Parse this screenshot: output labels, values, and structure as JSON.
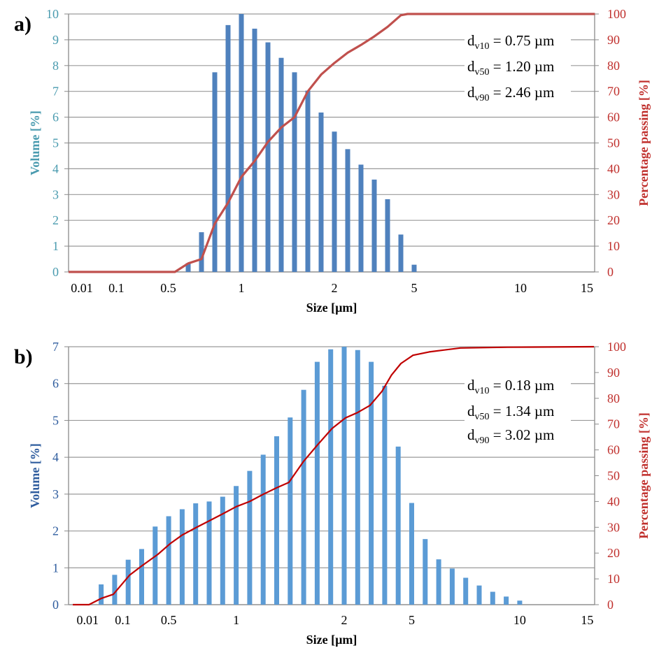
{
  "chart_data": [
    {
      "type": "bar+line",
      "panel_label": "a)",
      "xlabel": "Size [µm]",
      "ylabel": "Volume [%]",
      "y2label": "Percentage passing [%]",
      "ylim": [
        0,
        10
      ],
      "y2lim": [
        0,
        100
      ],
      "yticks": [
        0,
        1,
        2,
        3,
        4,
        5,
        6,
        7,
        8,
        9,
        10
      ],
      "y2ticks": [
        0,
        10,
        20,
        30,
        40,
        50,
        60,
        70,
        80,
        90,
        100
      ],
      "grid": true,
      "x_category_range": [
        0,
        39.6
      ],
      "x_ticks": [
        {
          "label": "0.01",
          "pos": 1
        },
        {
          "label": "0.1",
          "pos": 3.6
        },
        {
          "label": "0.5",
          "pos": 7.5
        },
        {
          "label": "1",
          "pos": 13
        },
        {
          "label": "2",
          "pos": 20
        },
        {
          "label": "5",
          "pos": 26
        },
        {
          "label": "10",
          "pos": 34
        },
        {
          "label": "15",
          "pos": 39
        }
      ],
      "bars": {
        "positions": [
          9,
          10,
          11,
          12,
          13,
          14,
          15,
          16,
          17,
          18,
          19,
          20,
          21,
          22,
          23,
          24,
          25,
          26
        ],
        "values": [
          0.34,
          1.54,
          7.74,
          9.57,
          10.0,
          9.43,
          8.9,
          8.3,
          7.74,
          7.03,
          6.18,
          5.44,
          4.76,
          4.16,
          3.58,
          2.82,
          1.45,
          0.28
        ]
      },
      "cumulative": {
        "positions": [
          0,
          8,
          9,
          10,
          11,
          12,
          13,
          14,
          15,
          16,
          17,
          18,
          19,
          20,
          21,
          22,
          23,
          24,
          25,
          25.5,
          39.6
        ],
        "values": [
          0,
          0,
          3.3,
          5,
          18.7,
          26.8,
          36.8,
          43,
          50.4,
          56,
          60,
          70,
          76.5,
          81,
          85,
          88,
          91.3,
          95,
          99.5,
          100,
          100
        ]
      },
      "annotations": [
        {
          "sub": "v10",
          "text": " = 0.75 µm"
        },
        {
          "sub": "v50",
          "text": " = 1.20 µm"
        },
        {
          "sub": "v90",
          "text": " = 2.46 µm"
        }
      ],
      "colors": {
        "bar": "#4F81BD",
        "line": "#C0504D",
        "ylabel": "#4A9BAF",
        "y2label": "#C0302D"
      }
    },
    {
      "type": "bar+line",
      "panel_label": "b)",
      "xlabel": "Size [µm]",
      "ylabel": "Volume [%]",
      "y2label": "Percentage passing [%]",
      "ylim": [
        0,
        7
      ],
      "y2lim": [
        0,
        100
      ],
      "yticks": [
        0,
        1,
        2,
        3,
        4,
        5,
        6,
        7
      ],
      "y2ticks": [
        0,
        10,
        20,
        30,
        40,
        50,
        60,
        70,
        80,
        90,
        100
      ],
      "grid": true,
      "x_category_range": [
        0,
        39
      ],
      "x_ticks": [
        {
          "label": "0.01",
          "pos": 1.5
        },
        {
          "label": "0.1",
          "pos": 4.1
        },
        {
          "label": "0.5",
          "pos": 7.5
        },
        {
          "label": "1",
          "pos": 12.5
        },
        {
          "label": "2",
          "pos": 20.5
        },
        {
          "label": "5",
          "pos": 25.5
        },
        {
          "label": "10",
          "pos": 33.5
        },
        {
          "label": "15",
          "pos": 38.5
        }
      ],
      "bars": {
        "positions": [
          2.5,
          3.5,
          4.5,
          5.5,
          6.5,
          7.5,
          8.5,
          9.5,
          10.5,
          11.5,
          12.5,
          13.5,
          14.5,
          15.5,
          16.5,
          17.5,
          18.5,
          19.5,
          20.5,
          21.5,
          22.5,
          23.5,
          24.5,
          25.5,
          26.5,
          27.5,
          28.5,
          29.5,
          30.5,
          31.5,
          32.5,
          33.5
        ],
        "values": [
          0.55,
          0.81,
          1.22,
          1.51,
          2.12,
          2.4,
          2.59,
          2.75,
          2.8,
          2.93,
          3.22,
          3.63,
          4.07,
          4.57,
          5.08,
          5.83,
          6.59,
          6.93,
          7.0,
          6.91,
          6.59,
          5.94,
          4.29,
          2.76,
          1.78,
          1.23,
          0.98,
          0.73,
          0.52,
          0.35,
          0.22,
          0.11
        ]
      },
      "cumulative": {
        "positions": [
          0.4,
          1.6,
          2.5,
          3.4,
          4.6,
          5.5,
          6.7,
          7.6,
          8.5,
          9.5,
          10.5,
          11.5,
          12.5,
          13.5,
          14.5,
          15.5,
          16.4,
          17.5,
          18.5,
          19.6,
          20.6,
          21.5,
          22.4,
          23.3,
          24.0,
          24.7,
          25.6,
          26.8,
          29.1,
          32.6,
          39
        ],
        "values": [
          0,
          0,
          2.4,
          4,
          11.4,
          15,
          19.5,
          23.6,
          27,
          29.8,
          32.5,
          35.2,
          38,
          40,
          42.8,
          45.3,
          47.4,
          55.6,
          61.8,
          68.3,
          72.4,
          74.5,
          77.2,
          82.7,
          89,
          93.5,
          96.7,
          98,
          99.5,
          99.8,
          100
        ]
      },
      "annotations": [
        {
          "sub": "v10",
          "text": " = 0.18 µm"
        },
        {
          "sub": "v50",
          "text": " = 1.34 µm"
        },
        {
          "sub": "v90",
          "text": " = 3.02 µm"
        }
      ],
      "colors": {
        "bar": "#5B9BD5",
        "line": "#C00000",
        "ylabel": "#2E5C9E",
        "y2label": "#C0302D"
      }
    }
  ]
}
